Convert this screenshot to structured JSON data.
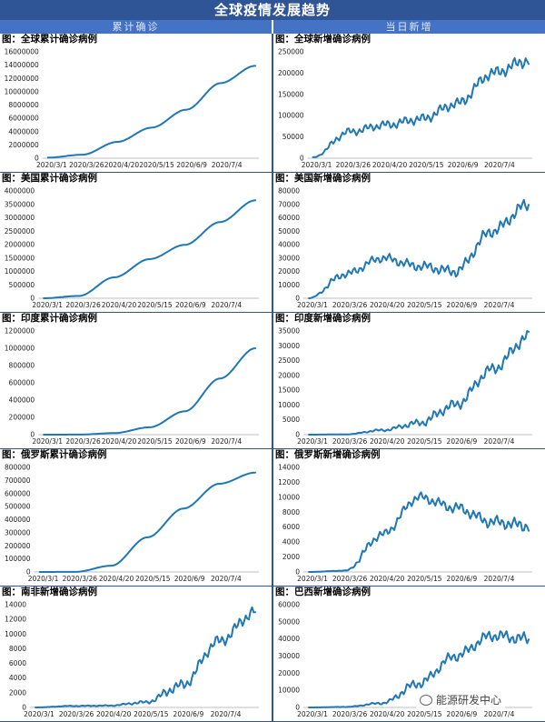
{
  "header": {
    "title": "全球疫情发展趋势",
    "left_label": "累计确诊",
    "right_label": "当日新增"
  },
  "watermark": {
    "text": "能源研发中心",
    "icon": "wechat-icon"
  },
  "colors": {
    "line": "#1f77b4",
    "header": "#2f5597",
    "subheader": "#4472c4"
  },
  "x_ticks": [
    "2020/3/1",
    "2020/3/26",
    "2020/4/20",
    "2020/5/15",
    "2020/6/9",
    "2020/7/4"
  ],
  "chart_data": [
    {
      "id": "global-cum",
      "type": "line",
      "title": "图：全球累计确诊病例",
      "ylim": [
        0,
        16000000
      ],
      "yticks": [
        "0",
        "2000000",
        "4000000",
        "6000000",
        "8000000",
        "10000000",
        "12000000",
        "14000000",
        "16000000"
      ],
      "x": [
        "2020/3/1",
        "2020/3/26",
        "2020/4/20",
        "2020/5/15",
        "2020/6/9",
        "2020/7/4",
        "2020/7/18"
      ],
      "series": [
        {
          "name": "全球累计确诊",
          "values": [
            88000,
            530000,
            2450000,
            4600000,
            7300000,
            11300000,
            13900000
          ]
        }
      ]
    },
    {
      "id": "global-new",
      "type": "line",
      "title": "图：全球新增确诊病例",
      "ylim": [
        0,
        250000
      ],
      "yticks": [
        "0",
        "50000",
        "100000",
        "150000",
        "200000",
        "250000"
      ],
      "x": [
        "2020/3/1",
        "2020/3/26",
        "2020/4/20",
        "2020/5/15",
        "2020/6/9",
        "2020/7/4",
        "2020/7/18"
      ],
      "series": [
        {
          "name": "全球新增",
          "values": [
            2000,
            62000,
            78000,
            92000,
            128000,
            200000,
            230000
          ]
        }
      ]
    },
    {
      "id": "us-cum",
      "type": "line",
      "title": "图：美国累计确诊病例",
      "ylim": [
        0,
        4000000
      ],
      "yticks": [
        "0",
        "500000",
        "1000000",
        "1500000",
        "2000000",
        "2500000",
        "3000000",
        "3500000",
        "4000000"
      ],
      "x": [
        "2020/3/1",
        "2020/3/26",
        "2020/4/20",
        "2020/5/15",
        "2020/6/9",
        "2020/7/4",
        "2020/7/18"
      ],
      "series": [
        {
          "name": "美国累计确诊",
          "values": [
            70,
            86000,
            780000,
            1460000,
            1990000,
            2840000,
            3650000
          ]
        }
      ]
    },
    {
      "id": "us-new",
      "type": "line",
      "title": "图：美国新增确诊病例",
      "ylim": [
        0,
        80000
      ],
      "yticks": [
        "0",
        "10000",
        "20000",
        "30000",
        "40000",
        "50000",
        "60000",
        "70000",
        "80000"
      ],
      "x": [
        "2020/3/1",
        "2020/3/26",
        "2020/4/20",
        "2020/5/15",
        "2020/6/9",
        "2020/7/4",
        "2020/7/18"
      ],
      "series": [
        {
          "name": "美国新增",
          "values": [
            0,
            18000,
            30000,
            24000,
            20000,
            50000,
            70000
          ]
        }
      ]
    },
    {
      "id": "india-cum",
      "type": "line",
      "title": "图：印度累计确诊病例",
      "ylim": [
        0,
        1200000
      ],
      "yticks": [
        "0",
        "200000",
        "400000",
        "600000",
        "800000",
        "1000000",
        "1200000"
      ],
      "x": [
        "2020/3/1",
        "2020/3/26",
        "2020/4/20",
        "2020/5/15",
        "2020/6/9",
        "2020/7/4",
        "2020/7/18"
      ],
      "series": [
        {
          "name": "印度累计确诊",
          "values": [
            3,
            700,
            18000,
            85000,
            270000,
            650000,
            1000000
          ]
        }
      ]
    },
    {
      "id": "india-new",
      "type": "line",
      "title": "图：印度新增确诊病例",
      "ylim": [
        0,
        35000
      ],
      "yticks": [
        "0",
        "5000",
        "10000",
        "15000",
        "20000",
        "25000",
        "30000",
        "35000"
      ],
      "x": [
        "2020/3/1",
        "2020/3/26",
        "2020/4/20",
        "2020/5/15",
        "2020/6/9",
        "2020/7/4",
        "2020/7/18"
      ],
      "series": [
        {
          "name": "印度新增",
          "values": [
            0,
            90,
            1500,
            3900,
            10000,
            22000,
            33000
          ]
        }
      ]
    },
    {
      "id": "russia-cum",
      "type": "line",
      "title": "图：俄罗斯累计确诊病例",
      "ylim": [
        0,
        800000
      ],
      "yticks": [
        "0",
        "100000",
        "200000",
        "300000",
        "400000",
        "500000",
        "600000",
        "700000",
        "800000"
      ],
      "x": [
        "2020/3/1",
        "2020/3/26",
        "2020/4/20",
        "2020/5/15",
        "2020/6/9",
        "2020/7/4",
        "2020/7/18"
      ],
      "series": [
        {
          "name": "俄罗斯累计确诊",
          "values": [
            0,
            850,
            48000,
            265000,
            485000,
            675000,
            760000
          ]
        }
      ]
    },
    {
      "id": "russia-new",
      "type": "line",
      "title": "图：俄罗斯新增确诊病例",
      "ylim": [
        0,
        14000
      ],
      "yticks": [
        "0",
        "2000",
        "4000",
        "6000",
        "8000",
        "10000",
        "12000",
        "14000"
      ],
      "x": [
        "2020/3/1",
        "2020/3/26",
        "2020/4/20",
        "2020/5/15",
        "2020/6/9",
        "2020/7/4",
        "2020/7/18"
      ],
      "series": [
        {
          "name": "俄罗斯新增",
          "values": [
            0,
            180,
            5000,
            10000,
            8600,
            6700,
            6200
          ]
        }
      ]
    },
    {
      "id": "sa-new",
      "type": "line",
      "title": "图：南非新增确诊病例",
      "ylim": [
        0,
        14000
      ],
      "yticks": [
        "0",
        "2000",
        "4000",
        "6000",
        "8000",
        "10000",
        "12000",
        "14000"
      ],
      "x": [
        "2020/3/1",
        "2020/3/26",
        "2020/4/20",
        "2020/5/15",
        "2020/6/9",
        "2020/7/4",
        "2020/7/18"
      ],
      "series": [
        {
          "name": "南非新增",
          "values": [
            0,
            200,
            250,
            700,
            3000,
            9000,
            13000
          ]
        }
      ]
    },
    {
      "id": "brazil-new",
      "type": "line",
      "title": "图：巴西新增确诊病例",
      "ylim": [
        0,
        60000
      ],
      "yticks": [
        "0",
        "10000",
        "20000",
        "30000",
        "40000",
        "50000",
        "60000"
      ],
      "x": [
        "2020/3/1",
        "2020/3/26",
        "2020/4/20",
        "2020/5/15",
        "2020/6/9",
        "2020/7/4",
        "2020/7/18"
      ],
      "series": [
        {
          "name": "巴西新增",
          "values": [
            0,
            300,
            2500,
            14000,
            30000,
            42000,
            40000
          ]
        }
      ]
    }
  ]
}
